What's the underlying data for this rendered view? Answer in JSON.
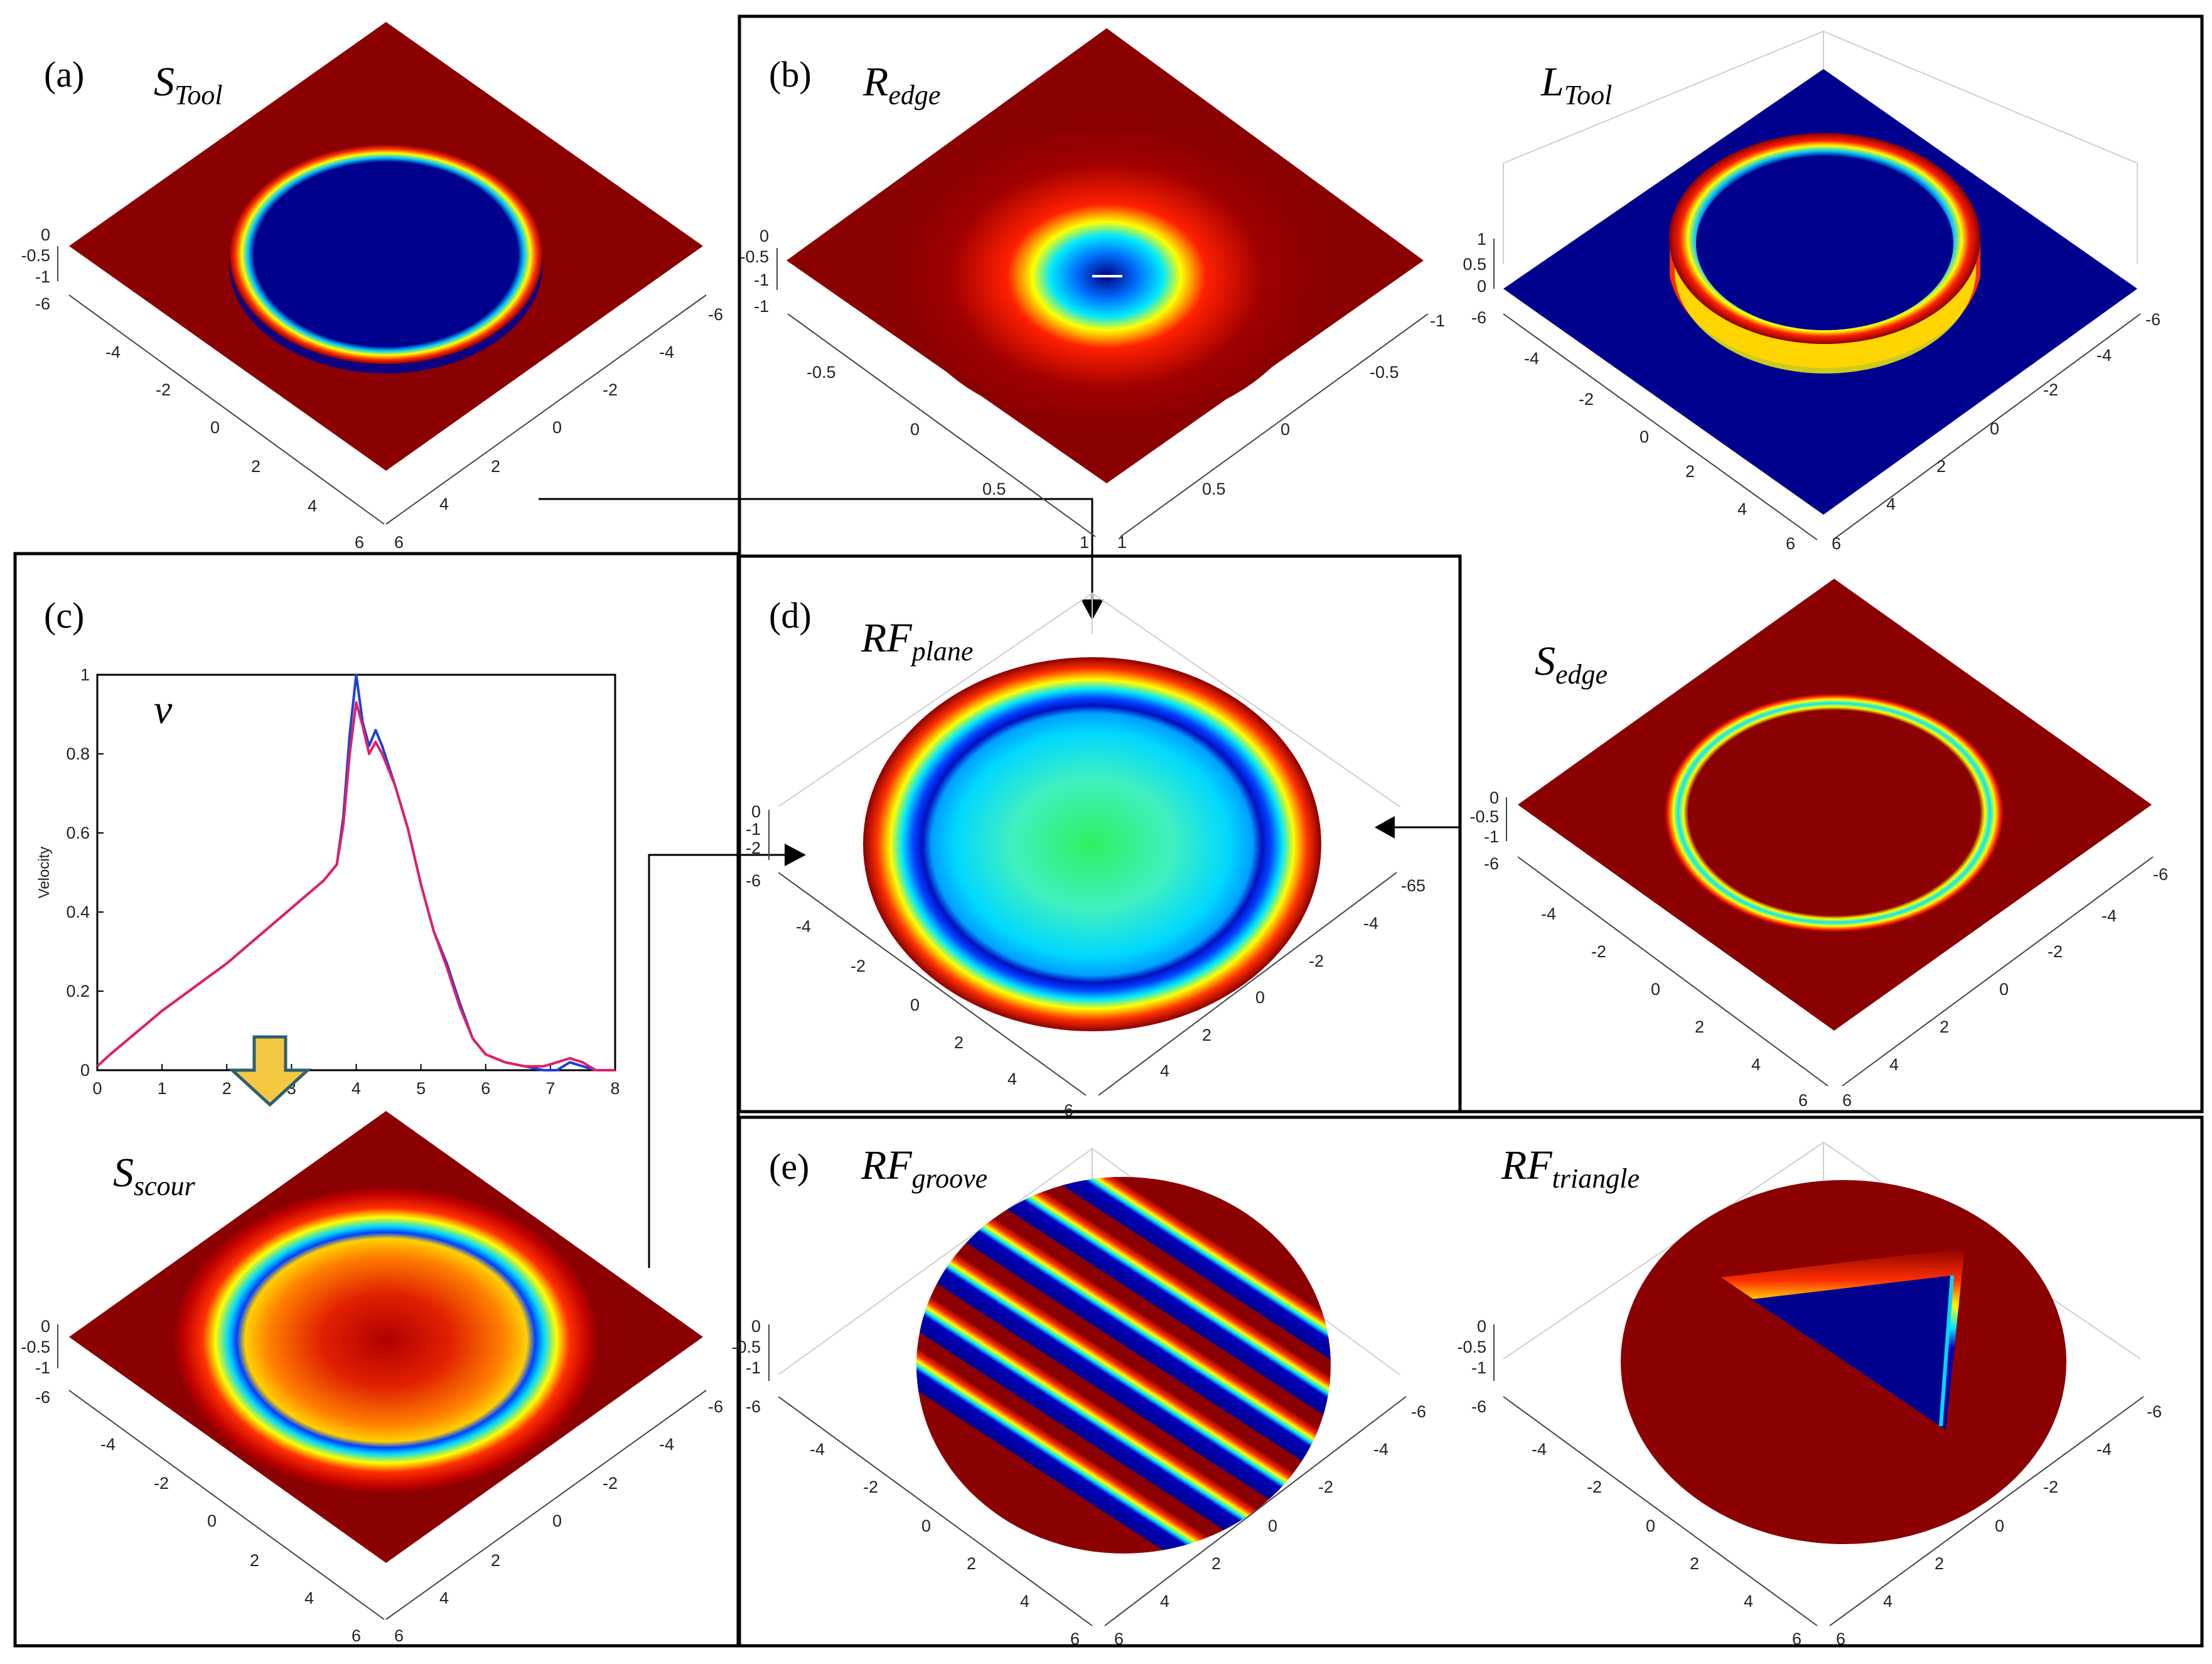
{
  "panels": [
    {
      "label": "(a)",
      "symbol": "S",
      "subscript": "Tool"
    },
    {
      "label": "(b)",
      "symbol": "R",
      "subscript": "edge"
    },
    {
      "label": "",
      "symbol": "L",
      "subscript": "Tool"
    },
    {
      "label": "(c)",
      "symbol": "v",
      "subscript": ""
    },
    {
      "label": "",
      "symbol": "S",
      "subscript": "scour"
    },
    {
      "label": "(d)",
      "symbol": "RF",
      "subscript": "plane"
    },
    {
      "label": "",
      "symbol": "S",
      "subscript": "edge"
    },
    {
      "label": "(e)",
      "symbol": "RF",
      "subscript": "groove"
    },
    {
      "label": "",
      "symbol": "RF",
      "subscript": "triangle"
    }
  ],
  "ticks": {
    "xy_range6": [
      "-6",
      "-4",
      "-2",
      "0",
      "2",
      "4",
      "6"
    ],
    "xy_range1": [
      "-1",
      "-0.5",
      "0",
      "0.5",
      "1"
    ],
    "z_neg": [
      "0",
      "-0.5",
      "-1"
    ],
    "z_pos": [
      "1",
      "0.5",
      "0"
    ],
    "z_plane": [
      "0",
      "-1",
      "-2",
      "-6"
    ],
    "z_plane_right": "-65"
  },
  "chart_data": {
    "type": "line",
    "title": "v",
    "xlabel": "",
    "ylabel": "Velocity",
    "xlim": [
      0,
      8
    ],
    "ylim": [
      0,
      1
    ],
    "xticks": [
      "0",
      "1",
      "2",
      "3",
      "4",
      "5",
      "6",
      "7",
      "8"
    ],
    "yticks": [
      "0",
      "0.2",
      "0.4",
      "0.6",
      "0.8",
      "1"
    ],
    "series": [
      {
        "name": "blue",
        "color": "#1f3fd6",
        "x": [
          0,
          0.2,
          1,
          2,
          3,
          3.5,
          3.7,
          3.8,
          3.9,
          4.0,
          4.1,
          4.2,
          4.3,
          4.4,
          4.6,
          4.8,
          5.0,
          5.2,
          5.4,
          5.6,
          5.8,
          6.0,
          6.3,
          6.6,
          6.9,
          7.1,
          7.3,
          7.5,
          7.7,
          8
        ],
        "y": [
          0.01,
          0.04,
          0.15,
          0.27,
          0.41,
          0.48,
          0.52,
          0.64,
          0.85,
          1.0,
          0.88,
          0.82,
          0.86,
          0.82,
          0.72,
          0.61,
          0.47,
          0.35,
          0.27,
          0.17,
          0.08,
          0.04,
          0.02,
          0.01,
          0.0,
          0.0,
          0.02,
          0.01,
          0.0,
          0.0
        ]
      },
      {
        "name": "red",
        "color": "#e0206a",
        "x": [
          0,
          0.2,
          1,
          2,
          3,
          3.5,
          3.7,
          3.8,
          3.9,
          4.0,
          4.1,
          4.2,
          4.3,
          4.4,
          4.6,
          4.8,
          5.0,
          5.2,
          5.4,
          5.6,
          5.8,
          6.0,
          6.3,
          6.6,
          6.9,
          7.1,
          7.3,
          7.5,
          7.7,
          8
        ],
        "y": [
          0.01,
          0.04,
          0.15,
          0.27,
          0.41,
          0.48,
          0.52,
          0.62,
          0.8,
          0.93,
          0.87,
          0.8,
          0.83,
          0.8,
          0.72,
          0.61,
          0.47,
          0.35,
          0.26,
          0.16,
          0.08,
          0.04,
          0.02,
          0.01,
          0.01,
          0.02,
          0.03,
          0.02,
          0.0,
          0.0
        ]
      }
    ]
  },
  "colors": {
    "dark_red": "#8b0000",
    "navy": "#00008f",
    "arrow_fill": "#f5c842",
    "arrow_stroke": "#2f5f6f"
  }
}
